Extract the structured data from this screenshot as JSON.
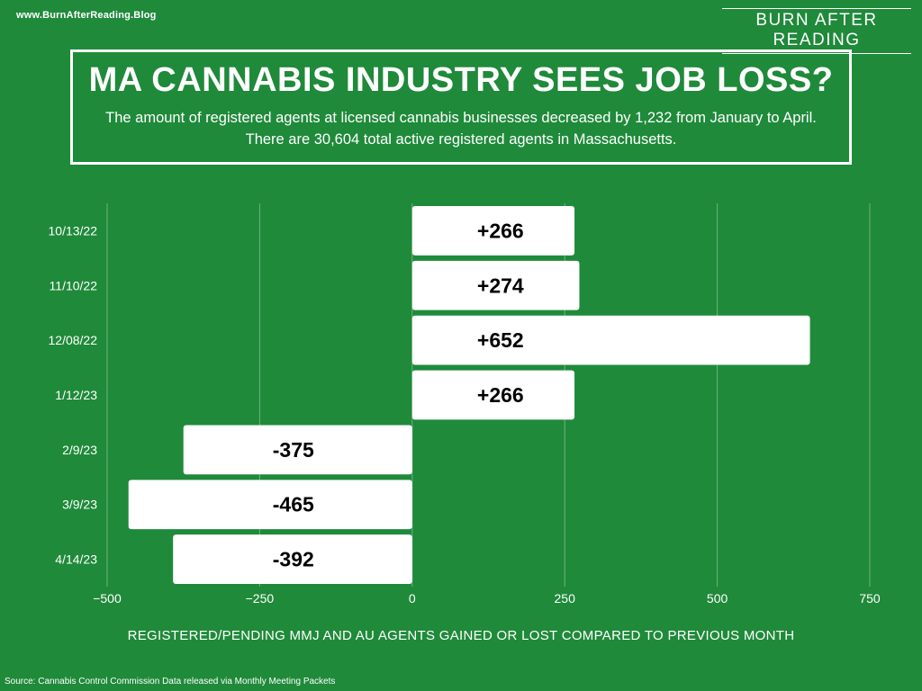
{
  "header": {
    "site_url": "www.BurnAfterReading.Blog",
    "brand": "BURN AFTER READING",
    "title": "MA CANNABIS INDUSTRY SEES JOB LOSS?",
    "subtitle": "The amount of registered agents at licensed cannabis businesses decreased by 1,232 from January to April.  There are 30,604 total active registered agents in Massachusetts."
  },
  "chart_data": {
    "type": "bar",
    "orientation": "horizontal",
    "categories": [
      "10/13/22",
      "11/10/22",
      "12/08/22",
      "1/12/23",
      "2/9/23",
      "3/9/23",
      "4/14/23"
    ],
    "values": [
      266,
      274,
      652,
      266,
      -375,
      -465,
      -392
    ],
    "data_labels": [
      "+266",
      "+274",
      "+652",
      "+266",
      "-375",
      "-465",
      "-392"
    ],
    "xlabel": "REGISTERED/PENDING MMJ AND AU AGENTS GAINED OR  LOST COMPARED TO PREVIOUS MONTH",
    "ylabel": "",
    "xlim": [
      -500,
      750
    ],
    "xticks": [
      -500,
      -250,
      0,
      250,
      500,
      750
    ],
    "xtick_labels": [
      "−500",
      "−250",
      "0",
      "250",
      "500",
      "750"
    ],
    "grid": true,
    "bar_color": "#ffffff",
    "background_color": "#1f8a3a"
  },
  "footer": {
    "source": "Source: Cannabis Control Commission Data released via Monthly Meeting Packets"
  }
}
